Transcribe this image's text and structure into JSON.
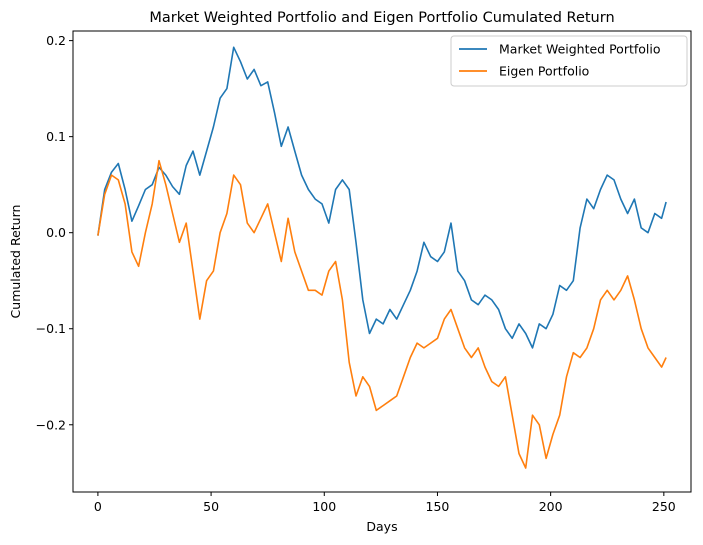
{
  "chart_data": {
    "type": "line",
    "title": "Market Weighted Portfolio and Eigen Portfolio Cumulated Return",
    "xlabel": "Days",
    "ylabel": "Cumulated Return",
    "xlim": [
      -11,
      262
    ],
    "ylim": [
      -0.27,
      0.21
    ],
    "xticks": [
      0,
      50,
      100,
      150,
      200,
      250
    ],
    "xtick_labels": [
      "0",
      "50",
      "100",
      "150",
      "200",
      "250"
    ],
    "yticks": [
      -0.2,
      -0.1,
      0.0,
      0.1,
      0.2
    ],
    "ytick_labels": [
      "−0.2",
      "−0.1",
      "0.0",
      "0.1",
      "0.2"
    ],
    "grid": false,
    "legend": "top-right",
    "series": [
      {
        "name": "Market Weighted Portfolio",
        "color": "#1f77b4",
        "x": [
          0,
          3,
          6,
          9,
          12,
          15,
          18,
          21,
          24,
          27,
          30,
          33,
          36,
          39,
          42,
          45,
          48,
          51,
          54,
          57,
          60,
          63,
          66,
          69,
          72,
          75,
          78,
          81,
          84,
          87,
          90,
          93,
          96,
          99,
          102,
          105,
          108,
          111,
          114,
          117,
          120,
          123,
          126,
          129,
          132,
          135,
          138,
          141,
          144,
          147,
          150,
          153,
          156,
          159,
          162,
          165,
          168,
          171,
          174,
          177,
          180,
          183,
          186,
          189,
          192,
          195,
          198,
          201,
          204,
          207,
          210,
          213,
          216,
          219,
          222,
          225,
          228,
          231,
          234,
          237,
          240,
          243,
          246,
          249,
          251
        ],
        "y": [
          -0.003,
          0.045,
          0.063,
          0.072,
          0.045,
          0.012,
          0.028,
          0.045,
          0.05,
          0.068,
          0.06,
          0.048,
          0.04,
          0.07,
          0.085,
          0.06,
          0.085,
          0.11,
          0.14,
          0.15,
          0.193,
          0.178,
          0.16,
          0.17,
          0.153,
          0.157,
          0.125,
          0.09,
          0.11,
          0.085,
          0.06,
          0.045,
          0.035,
          0.03,
          0.01,
          0.045,
          0.055,
          0.045,
          -0.01,
          -0.07,
          -0.105,
          -0.09,
          -0.095,
          -0.08,
          -0.09,
          -0.075,
          -0.06,
          -0.04,
          -0.01,
          -0.025,
          -0.03,
          -0.02,
          0.01,
          -0.04,
          -0.05,
          -0.07,
          -0.075,
          -0.065,
          -0.07,
          -0.08,
          -0.1,
          -0.11,
          -0.095,
          -0.105,
          -0.12,
          -0.095,
          -0.1,
          -0.085,
          -0.055,
          -0.06,
          -0.05,
          0.005,
          0.035,
          0.025,
          0.045,
          0.06,
          0.055,
          0.035,
          0.02,
          0.035,
          0.005,
          0.0,
          0.02,
          0.015,
          0.032
        ]
      },
      {
        "name": "Eigen Portfolio",
        "color": "#ff7f0e",
        "x": [
          0,
          3,
          6,
          9,
          12,
          15,
          18,
          21,
          24,
          27,
          30,
          33,
          36,
          39,
          42,
          45,
          48,
          51,
          54,
          57,
          60,
          63,
          66,
          69,
          72,
          75,
          78,
          81,
          84,
          87,
          90,
          93,
          96,
          99,
          102,
          105,
          108,
          111,
          114,
          117,
          120,
          123,
          126,
          129,
          132,
          135,
          138,
          141,
          144,
          147,
          150,
          153,
          156,
          159,
          162,
          165,
          168,
          171,
          174,
          177,
          180,
          183,
          186,
          189,
          192,
          195,
          198,
          201,
          204,
          207,
          210,
          213,
          216,
          219,
          222,
          225,
          228,
          231,
          234,
          237,
          240,
          243,
          246,
          249,
          251
        ],
        "y": [
          -0.003,
          0.04,
          0.06,
          0.055,
          0.03,
          -0.02,
          -0.035,
          0.0,
          0.03,
          0.075,
          0.05,
          0.02,
          -0.01,
          0.01,
          -0.04,
          -0.09,
          -0.05,
          -0.04,
          0.0,
          0.02,
          0.06,
          0.05,
          0.01,
          0.0,
          0.015,
          0.03,
          0.0,
          -0.03,
          0.015,
          -0.02,
          -0.04,
          -0.06,
          -0.06,
          -0.065,
          -0.04,
          -0.03,
          -0.07,
          -0.135,
          -0.17,
          -0.15,
          -0.16,
          -0.185,
          -0.18,
          -0.175,
          -0.17,
          -0.15,
          -0.13,
          -0.115,
          -0.12,
          -0.115,
          -0.11,
          -0.09,
          -0.08,
          -0.1,
          -0.12,
          -0.13,
          -0.12,
          -0.14,
          -0.155,
          -0.16,
          -0.15,
          -0.19,
          -0.23,
          -0.245,
          -0.19,
          -0.2,
          -0.235,
          -0.21,
          -0.19,
          -0.15,
          -0.125,
          -0.13,
          -0.12,
          -0.1,
          -0.07,
          -0.06,
          -0.07,
          -0.06,
          -0.045,
          -0.07,
          -0.1,
          -0.12,
          -0.13,
          -0.14,
          -0.13
        ]
      }
    ]
  }
}
